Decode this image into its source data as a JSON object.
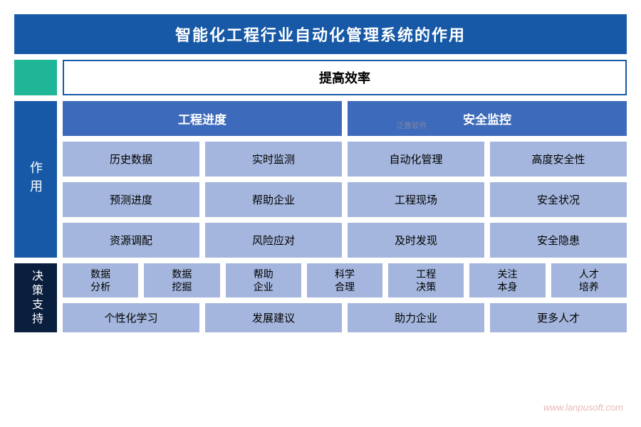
{
  "title": "智能化工程行业自动化管理系统的作用",
  "subtitle": "提高效率",
  "colors": {
    "title_bg": "#1759a6",
    "teal": "#1fb597",
    "header_bg": "#3d6aba",
    "cell_bg": "#a4b6dd",
    "dark_bg": "#0a1e3d",
    "border": "#1759a6"
  },
  "side1": "作用",
  "side2": "决策支持",
  "headers": [
    "工程进度",
    "安全监控"
  ],
  "grid": [
    [
      "历史数据",
      "实时监测",
      "自动化管理",
      "高度安全性"
    ],
    [
      "预测进度",
      "帮助企业",
      "工程现场",
      "安全状况"
    ],
    [
      "资源调配",
      "风险应对",
      "及时发现",
      "安全隐患"
    ]
  ],
  "bottom7": [
    {
      "l1": "数据",
      "l2": "分析"
    },
    {
      "l1": "数据",
      "l2": "挖掘"
    },
    {
      "l1": "帮助",
      "l2": "企业"
    },
    {
      "l1": "科学",
      "l2": "合理"
    },
    {
      "l1": "工程",
      "l2": "决策"
    },
    {
      "l1": "关注",
      "l2": "本身"
    },
    {
      "l1": "人才",
      "l2": "培养"
    }
  ],
  "bottom4": [
    "个性化学习",
    "发展建议",
    "助力企业",
    "更多人才"
  ],
  "watermark": "www.lanpusoft.com",
  "watermark2": "泛普软件"
}
